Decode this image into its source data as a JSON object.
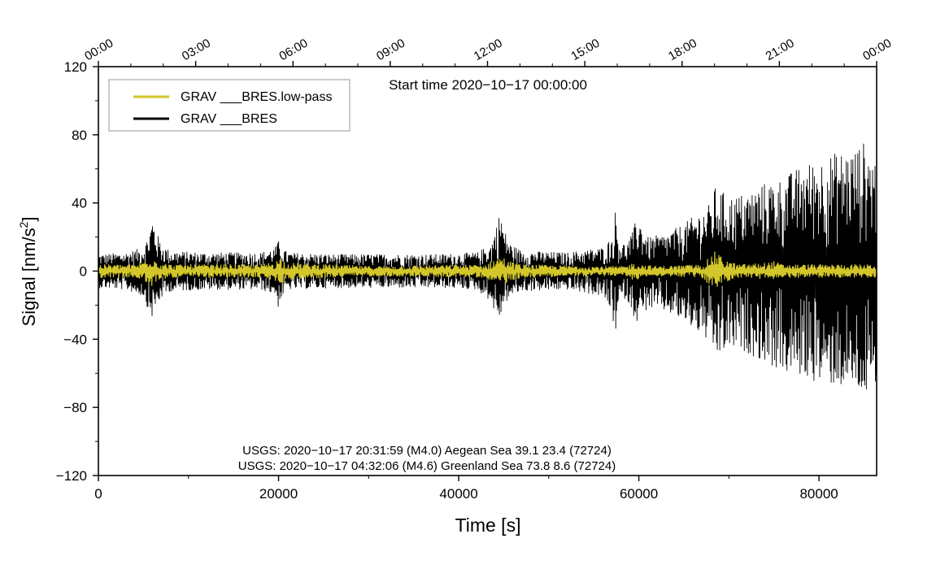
{
  "chart_data": {
    "type": "line",
    "title": "Start time 2020−10−17 00:00:00",
    "xlabel": "Time [s]",
    "ylabel": "Signal [nm/s",
    "ylabel_sup": "2",
    "ylabel_end": "]",
    "xlim": [
      0,
      86400
    ],
    "ylim": [
      -120,
      120
    ],
    "x_ticks": [
      0,
      20000,
      40000,
      60000,
      80000
    ],
    "x_tick_labels": [
      "0",
      "20000",
      "40000",
      "60000",
      "80000"
    ],
    "y_ticks": [
      -120,
      -80,
      -40,
      0,
      40,
      80,
      120
    ],
    "y_tick_labels": [
      "−120",
      "−80",
      "−40",
      "0",
      "40",
      "80",
      "120"
    ],
    "top_ticks": [
      0,
      10800,
      21600,
      32400,
      43200,
      54000,
      64800,
      75600,
      86400
    ],
    "top_tick_labels": [
      "00:00",
      "03:00",
      "06:00",
      "09:00",
      "12:00",
      "15:00",
      "18:00",
      "21:00",
      "00:00"
    ],
    "grid": false,
    "legend_position": "top-left",
    "series": [
      {
        "name": "GRAV ___BRES",
        "color": "#000000",
        "kind": "envelope",
        "x": [
          0,
          3000,
          5000,
          5600,
          6000,
          6400,
          7000,
          8000,
          12000,
          18000,
          19600,
          20000,
          20400,
          21000,
          26000,
          30000,
          34000,
          38000,
          42000,
          43600,
          44300,
          44700,
          45000,
          45800,
          47000,
          52000,
          56000,
          57000,
          57400,
          57800,
          58600,
          59400,
          59800,
          61000,
          63000,
          65000,
          67000,
          68000,
          68500,
          70000,
          72000,
          74000,
          76000,
          78000,
          80000,
          82000,
          84000,
          85000,
          86400
        ],
        "upper": [
          10,
          11,
          14,
          22,
          32,
          24,
          16,
          12,
          11,
          11,
          14,
          18,
          14,
          11,
          10,
          10,
          10,
          10,
          11,
          16,
          30,
          36,
          25,
          16,
          12,
          11,
          14,
          20,
          36,
          18,
          16,
          24,
          34,
          20,
          22,
          28,
          36,
          40,
          50,
          44,
          46,
          52,
          55,
          62,
          66,
          70,
          72,
          76,
          66
        ],
        "lower": [
          -10,
          -11,
          -15,
          -24,
          -28,
          -22,
          -16,
          -12,
          -11,
          -11,
          -14,
          -22,
          -15,
          -11,
          -10,
          -10,
          -10,
          -10,
          -11,
          -18,
          -30,
          -26,
          -20,
          -15,
          -12,
          -11,
          -15,
          -25,
          -38,
          -18,
          -16,
          -26,
          -30,
          -22,
          -24,
          -30,
          -38,
          -44,
          -52,
          -46,
          -48,
          -54,
          -60,
          -62,
          -66,
          -68,
          -70,
          -74,
          -76
        ]
      },
      {
        "name": "GRAV ___BRES.low-pass",
        "color": "#d2c62a",
        "kind": "envelope",
        "x": [
          0,
          4000,
          5000,
          5800,
          6200,
          6800,
          8000,
          18000,
          19600,
          20200,
          21000,
          30000,
          43000,
          44200,
          44800,
          45600,
          47000,
          55000,
          58500,
          59400,
          60200,
          62000,
          67000,
          67800,
          68500,
          69500,
          71000,
          74000,
          75000,
          76000,
          80000,
          86400
        ],
        "upper": [
          4,
          4,
          6,
          10,
          8,
          5,
          4,
          4,
          6,
          8,
          5,
          3,
          4,
          8,
          9,
          6,
          4,
          3,
          3,
          5,
          4,
          3,
          4,
          8,
          12,
          7,
          4,
          5,
          6,
          4,
          4,
          4
        ],
        "lower": [
          -4,
          -4,
          -6,
          -10,
          -8,
          -5,
          -4,
          -4,
          -6,
          -8,
          -5,
          -3,
          -4,
          -8,
          -9,
          -6,
          -4,
          -3,
          -3,
          -6,
          -4,
          -3,
          -4,
          -9,
          -10,
          -7,
          -4,
          -5,
          -6,
          -4,
          -4,
          -4
        ]
      }
    ],
    "annotations": [
      "USGS: 2020−10−17 20:31:59 (M4.0) Aegean Sea 39.1 23.4 (72724)",
      "USGS: 2020−10−17 04:32:06 (M4.6) Greenland Sea 73.8 8.6 (72724)"
    ]
  }
}
